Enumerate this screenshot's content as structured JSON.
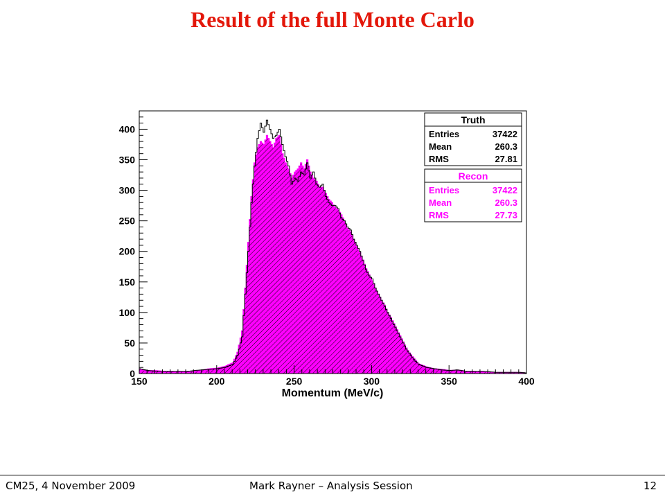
{
  "slide": {
    "title": "Result of the full Monte Carlo",
    "footer_left": "CM25, 4 November 2009",
    "footer_center": "Mark Rayner – Analysis Session",
    "footer_right": "12"
  },
  "chart_data": {
    "type": "histogram",
    "xlabel": "Momentum (MeV/c)",
    "ylabel": "",
    "xlim": [
      150,
      400
    ],
    "ylim": [
      0,
      430
    ],
    "x_ticks": [
      150,
      200,
      250,
      300,
      350,
      400
    ],
    "y_ticks": [
      0,
      50,
      100,
      150,
      200,
      250,
      300,
      350,
      400
    ],
    "bin_width": 1,
    "series": [
      {
        "name": "Truth",
        "color": "#000000",
        "style": "outline",
        "stats": {
          "entries": "37422",
          "mean": "260.3",
          "rms": "27.81"
        },
        "x": [
          150,
          155,
          160,
          165,
          170,
          175,
          180,
          185,
          190,
          195,
          200,
          205,
          210,
          213,
          216,
          218,
          220,
          222,
          224,
          226,
          228,
          230,
          232,
          234,
          236,
          238,
          240,
          242,
          244,
          246,
          248,
          250,
          252,
          254,
          256,
          258,
          260,
          262,
          264,
          266,
          268,
          270,
          272,
          274,
          276,
          278,
          280,
          282,
          284,
          286,
          288,
          290,
          292,
          294,
          296,
          298,
          300,
          302,
          304,
          306,
          308,
          310,
          312,
          314,
          316,
          318,
          320,
          322,
          324,
          326,
          328,
          330,
          335,
          340,
          345,
          350,
          355,
          360,
          365,
          370,
          375,
          380,
          385,
          390,
          395,
          400
        ],
        "values": [
          8,
          5,
          4,
          4,
          3,
          4,
          3,
          5,
          6,
          7,
          8,
          10,
          15,
          30,
          60,
          130,
          200,
          280,
          340,
          385,
          410,
          395,
          415,
          400,
          385,
          390,
          400,
          375,
          355,
          340,
          310,
          320,
          315,
          330,
          325,
          345,
          320,
          330,
          310,
          305,
          310,
          290,
          280,
          275,
          275,
          270,
          255,
          250,
          240,
          235,
          220,
          210,
          200,
          185,
          170,
          160,
          155,
          140,
          130,
          120,
          110,
          100,
          90,
          80,
          70,
          60,
          50,
          40,
          33,
          26,
          20,
          15,
          10,
          8,
          6,
          5,
          6,
          4,
          3,
          4,
          3,
          2,
          2,
          2,
          2,
          1
        ]
      },
      {
        "name": "Recon",
        "color": "#ff00ff",
        "style": "filled-hatched",
        "stats": {
          "entries": "37422",
          "mean": "260.3",
          "rms": "27.73"
        },
        "x": [
          150,
          155,
          160,
          165,
          170,
          175,
          180,
          185,
          190,
          195,
          200,
          205,
          210,
          213,
          216,
          218,
          220,
          222,
          224,
          226,
          228,
          230,
          232,
          234,
          236,
          238,
          240,
          242,
          244,
          246,
          248,
          250,
          252,
          254,
          256,
          258,
          260,
          262,
          264,
          266,
          268,
          270,
          272,
          274,
          276,
          278,
          280,
          282,
          284,
          286,
          288,
          290,
          292,
          294,
          296,
          298,
          300,
          302,
          304,
          306,
          308,
          310,
          312,
          314,
          316,
          318,
          320,
          322,
          324,
          326,
          328,
          330,
          335,
          340,
          345,
          350,
          355,
          360,
          365,
          370,
          375,
          380,
          385,
          390,
          395,
          400
        ],
        "values": [
          7,
          5,
          5,
          4,
          4,
          3,
          4,
          4,
          6,
          8,
          9,
          12,
          18,
          35,
          70,
          140,
          215,
          290,
          345,
          370,
          380,
          375,
          390,
          380,
          370,
          385,
          390,
          360,
          345,
          335,
          320,
          330,
          335,
          345,
          335,
          350,
          330,
          320,
          315,
          305,
          305,
          295,
          285,
          280,
          272,
          268,
          260,
          250,
          238,
          232,
          220,
          208,
          198,
          186,
          172,
          162,
          152,
          140,
          130,
          120,
          112,
          100,
          92,
          82,
          72,
          62,
          52,
          42,
          34,
          28,
          22,
          16,
          11,
          8,
          7,
          5,
          6,
          4,
          4,
          3,
          3,
          2,
          2,
          2,
          2,
          1
        ]
      }
    ],
    "legend": [
      "Truth",
      "Recon"
    ],
    "stat_labels": {
      "entries": "Entries",
      "mean": "Mean",
      "rms": "RMS"
    }
  }
}
